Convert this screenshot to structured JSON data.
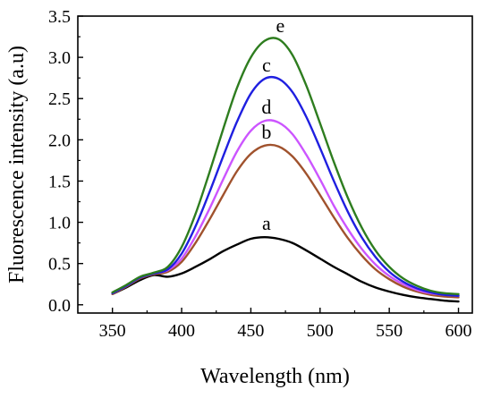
{
  "chart_data": {
    "type": "line",
    "xlabel": "Wavelength (nm)",
    "ylabel": "Fluorescence intensity (a.u)",
    "xlim": [
      325,
      610
    ],
    "ylim": [
      -0.1,
      3.5
    ],
    "x_ticks": [
      350,
      400,
      450,
      500,
      550,
      600
    ],
    "y_ticks": [
      0.0,
      0.5,
      1.0,
      1.5,
      2.0,
      2.5,
      3.0,
      3.5
    ],
    "x_tick_labels": [
      "350",
      "400",
      "450",
      "500",
      "550",
      "600"
    ],
    "y_tick_labels": [
      "0.0",
      "0.5",
      "1.0",
      "1.5",
      "2.0",
      "2.5",
      "3.0",
      "3.5"
    ],
    "grid": false,
    "legend": "none",
    "series": [
      {
        "name": "a",
        "color": "#000000",
        "x": [
          350,
          360,
          370,
          380,
          390,
          400,
          410,
          420,
          430,
          440,
          450,
          460,
          470,
          480,
          490,
          500,
          510,
          520,
          530,
          540,
          550,
          560,
          570,
          580,
          590,
          600
        ],
        "values": [
          0.13,
          0.21,
          0.3,
          0.36,
          0.34,
          0.38,
          0.46,
          0.55,
          0.65,
          0.73,
          0.8,
          0.82,
          0.8,
          0.75,
          0.66,
          0.56,
          0.46,
          0.37,
          0.28,
          0.21,
          0.16,
          0.12,
          0.09,
          0.07,
          0.05,
          0.04
        ]
      },
      {
        "name": "b",
        "color": "#a0522d",
        "x": [
          350,
          360,
          370,
          380,
          390,
          400,
          410,
          420,
          430,
          440,
          450,
          460,
          470,
          480,
          490,
          500,
          510,
          520,
          530,
          540,
          550,
          560,
          570,
          580,
          590,
          600
        ],
        "values": [
          0.13,
          0.22,
          0.32,
          0.37,
          0.4,
          0.52,
          0.75,
          1.03,
          1.33,
          1.62,
          1.83,
          1.93,
          1.92,
          1.8,
          1.59,
          1.33,
          1.06,
          0.81,
          0.6,
          0.43,
          0.31,
          0.22,
          0.16,
          0.12,
          0.1,
          0.09
        ]
      },
      {
        "name": "c",
        "color": "#1f1fe0",
        "x": [
          350,
          360,
          370,
          380,
          390,
          400,
          410,
          420,
          430,
          440,
          450,
          460,
          470,
          480,
          490,
          500,
          510,
          520,
          530,
          540,
          550,
          560,
          570,
          580,
          590,
          600
        ],
        "values": [
          0.14,
          0.23,
          0.33,
          0.38,
          0.43,
          0.62,
          0.95,
          1.36,
          1.8,
          2.22,
          2.56,
          2.74,
          2.74,
          2.58,
          2.28,
          1.9,
          1.5,
          1.13,
          0.82,
          0.58,
          0.4,
          0.28,
          0.2,
          0.15,
          0.12,
          0.11
        ]
      },
      {
        "name": "d",
        "color": "#cc55ff",
        "x": [
          350,
          360,
          370,
          380,
          390,
          400,
          410,
          420,
          430,
          440,
          450,
          460,
          470,
          480,
          490,
          500,
          510,
          520,
          530,
          540,
          550,
          560,
          570,
          580,
          590,
          600
        ],
        "values": [
          0.14,
          0.23,
          0.33,
          0.38,
          0.42,
          0.56,
          0.83,
          1.16,
          1.52,
          1.86,
          2.11,
          2.23,
          2.21,
          2.07,
          1.82,
          1.52,
          1.2,
          0.92,
          0.68,
          0.49,
          0.35,
          0.25,
          0.18,
          0.14,
          0.12,
          0.11
        ]
      },
      {
        "name": "e",
        "color": "#2e7d1f",
        "x": [
          350,
          360,
          370,
          380,
          390,
          400,
          410,
          420,
          430,
          440,
          450,
          460,
          470,
          480,
          490,
          500,
          510,
          520,
          530,
          540,
          550,
          560,
          570,
          580,
          590,
          600
        ],
        "values": [
          0.15,
          0.24,
          0.34,
          0.39,
          0.46,
          0.7,
          1.1,
          1.6,
          2.13,
          2.63,
          3.0,
          3.2,
          3.22,
          3.03,
          2.66,
          2.2,
          1.73,
          1.3,
          0.94,
          0.66,
          0.46,
          0.32,
          0.23,
          0.17,
          0.14,
          0.13
        ]
      }
    ]
  }
}
